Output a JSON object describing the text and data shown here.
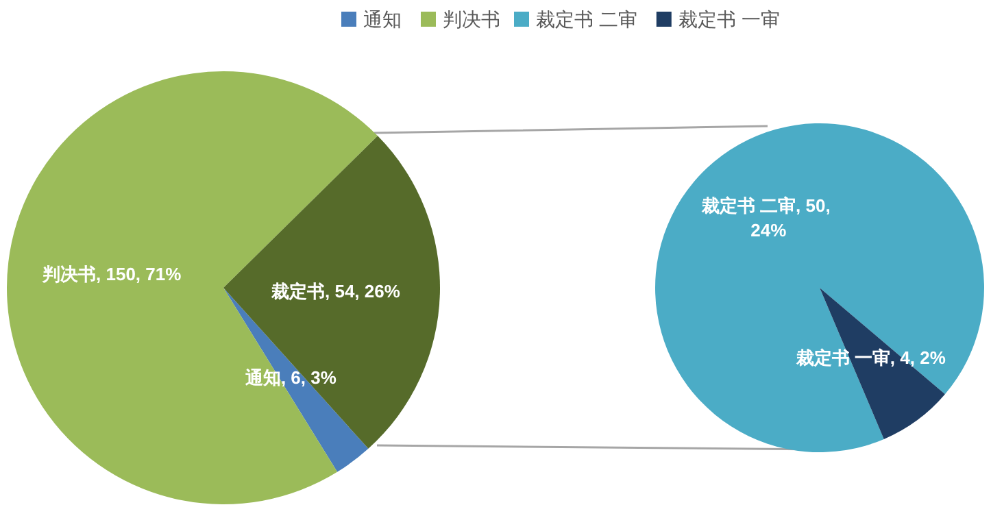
{
  "chart_data": [
    {
      "type": "pie",
      "categories": [
        "通知",
        "判决书",
        null
      ],
      "values": [
        6,
        150,
        54
      ],
      "colors": [
        "#4a7ebb",
        "#9bbb59",
        "#566b2a"
      ],
      "value_labels": [
        "通知, 6, 3%",
        "判决书, 150, 71%",
        "裁定书, 54, 26%"
      ],
      "legend": "top right"
    },
    {
      "type": "pie",
      "categories": [
        "裁定书 二审",
        "裁定书 一审"
      ],
      "values": [
        50,
        4
      ],
      "colors": [
        "#4bacc6",
        "#1f3d63"
      ],
      "value_labels": [
        "裁定书 二审, 50, 24%",
        "裁定书 一审, 4, 2%"
      ],
      "legend": "top left"
    }
  ]
}
